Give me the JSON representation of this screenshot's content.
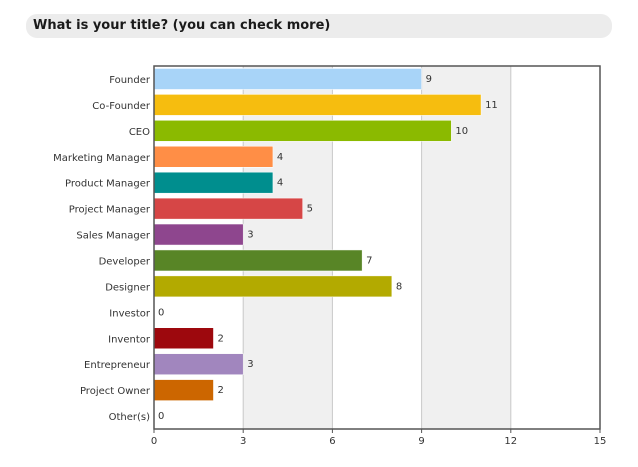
{
  "header": {
    "title": "What is your title? (you can check more)"
  },
  "chart_data": {
    "type": "bar",
    "orientation": "horizontal",
    "title": "What is your title? (you can check more)",
    "categories": [
      "Founder",
      "Co-Founder",
      "CEO",
      "Marketing Manager",
      "Product Manager",
      "Project Manager",
      "Sales Manager",
      "Developer",
      "Designer",
      "Investor",
      "Inventor",
      "Entrepreneur",
      "Project Owner",
      "Other(s)"
    ],
    "values": [
      9,
      11,
      10,
      4,
      4,
      5,
      3,
      7,
      8,
      0,
      2,
      3,
      2,
      0
    ],
    "colors": [
      "#a8d4f8",
      "#f6bd0f",
      "#8bba00",
      "#ff8e46",
      "#008e8e",
      "#d64646",
      "#8e468e",
      "#588526",
      "#b3aa00",
      "#008ed6",
      "#9d080d",
      "#a186be",
      "#cc6600",
      "#fdc689"
    ],
    "xlim": [
      0,
      15
    ],
    "xticks": [
      0,
      3,
      6,
      9,
      12,
      15
    ],
    "grid": true
  }
}
